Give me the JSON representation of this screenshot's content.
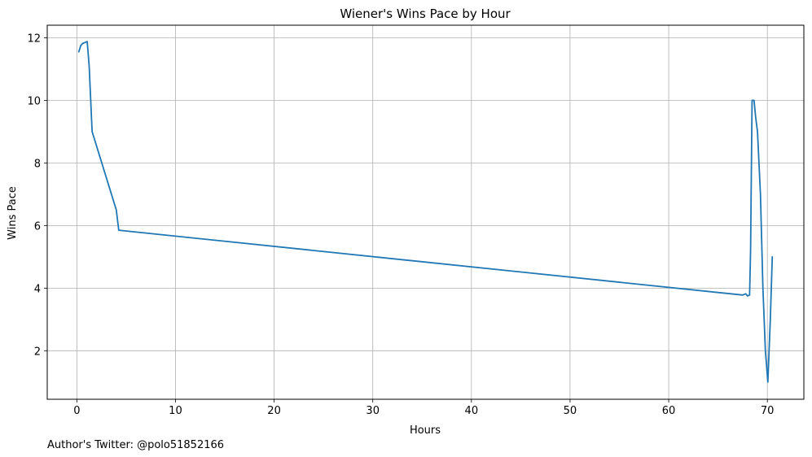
{
  "chart_data": {
    "type": "line",
    "title": "Wiener's Wins Pace by Hour",
    "xlabel": "Hours",
    "ylabel": "Wins Pace",
    "xlim": [
      -3.0,
      73.7
    ],
    "ylim": [
      0.45,
      12.4
    ],
    "xticks": [
      0,
      10,
      20,
      30,
      40,
      50,
      60,
      70
    ],
    "yticks": [
      2,
      4,
      6,
      8,
      10,
      12
    ],
    "grid": true,
    "series": [
      {
        "color": "#1f77b4",
        "x": [
          0.2,
          0.4,
          0.6,
          0.85,
          1.05,
          1.25,
          1.55,
          4.0,
          4.25,
          67.5,
          67.8,
          68.0,
          68.2,
          68.3,
          68.45,
          68.65,
          68.8,
          69.0,
          69.3,
          69.55,
          69.8,
          70.05,
          70.3,
          70.5
        ],
        "y": [
          11.55,
          11.75,
          11.82,
          11.85,
          11.88,
          11.1,
          9.0,
          6.5,
          5.85,
          3.78,
          3.82,
          3.75,
          3.78,
          5.2,
          10.0,
          10.0,
          9.5,
          9.0,
          7.0,
          4.0,
          2.0,
          1.0,
          3.0,
          5.0
        ]
      }
    ]
  },
  "footnote": "Author's Twitter: @polo51852166"
}
